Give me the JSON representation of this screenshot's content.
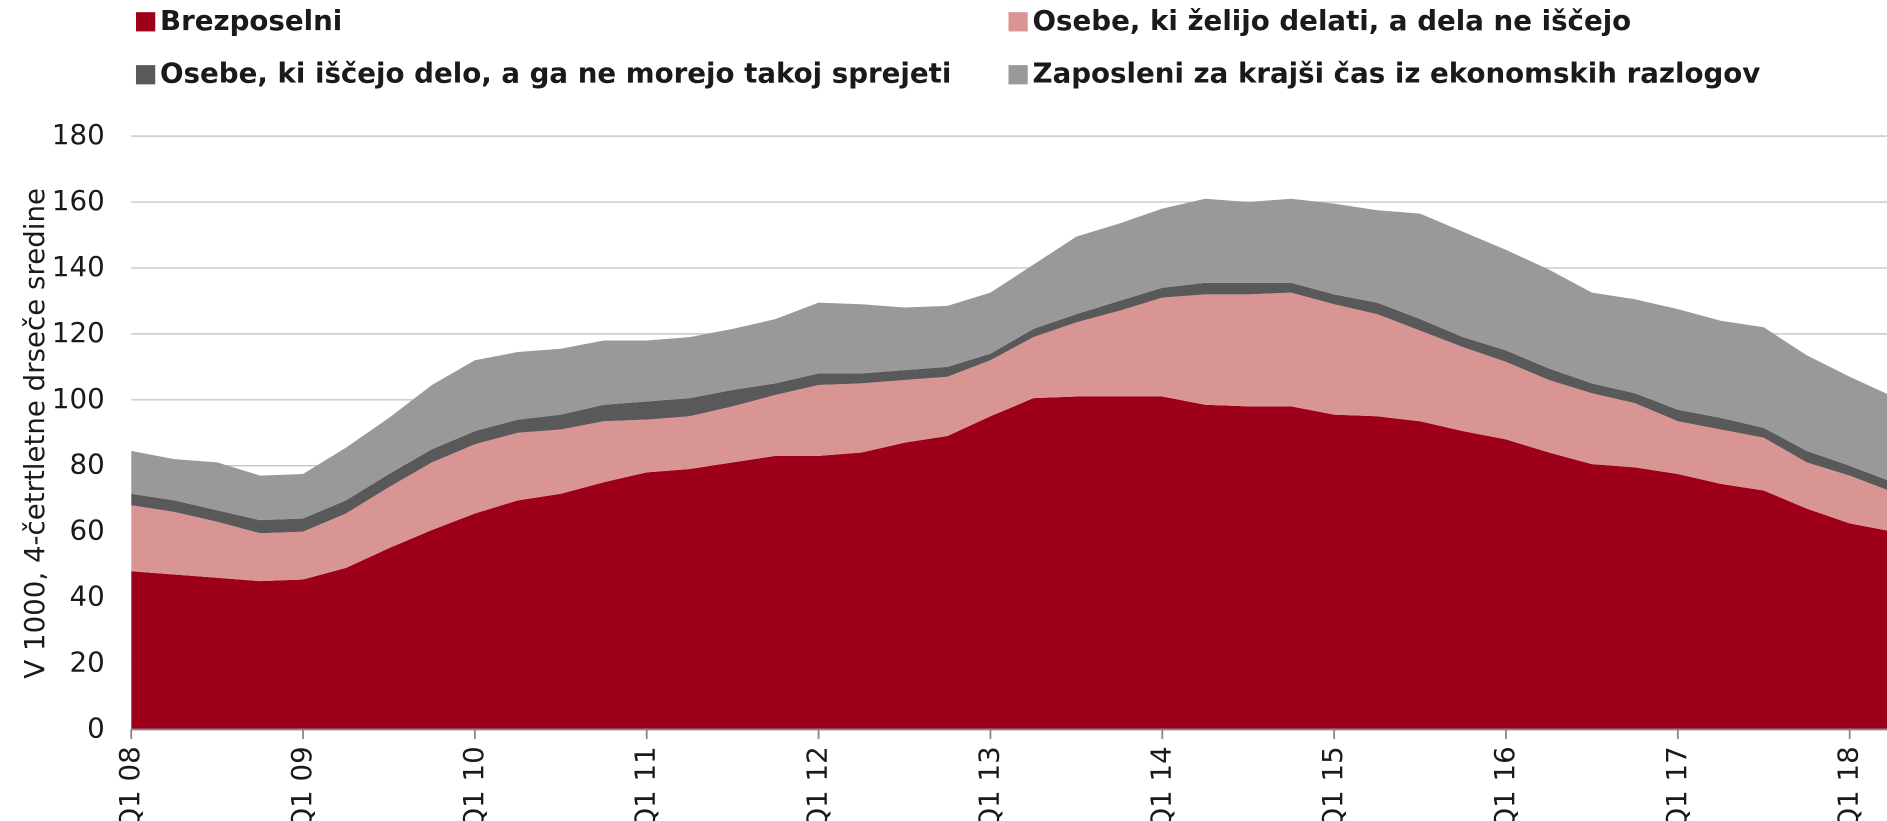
{
  "chart_data": {
    "type": "stacked_area",
    "y_label": "V 1000, 4-četrtletne drseče sredine",
    "categories": [
      "Q1 08",
      null,
      null,
      null,
      "Q1 09",
      null,
      null,
      null,
      "Q1 10",
      null,
      null,
      null,
      "Q1 11",
      null,
      null,
      null,
      "Q1 12",
      null,
      null,
      null,
      "Q1 13",
      null,
      null,
      null,
      "Q1 14",
      null,
      null,
      null,
      "Q1 15",
      null,
      null,
      null,
      "Q1 16",
      null,
      null,
      null,
      "Q1 17",
      null,
      null,
      null,
      "Q1 18",
      null
    ],
    "series": [
      {
        "name": "Brezposelni",
        "color": "#9e001a",
        "values": [
          48,
          47,
          46,
          45,
          45.5,
          49,
          55,
          60.5,
          65.5,
          69.5,
          71.5,
          75,
          78,
          79,
          81,
          83,
          83,
          84,
          87,
          89,
          95,
          100.5,
          101,
          101,
          101,
          98.5,
          98,
          98,
          95.5,
          95,
          93.5,
          90.5,
          88,
          84,
          80.5,
          79.5,
          77.5,
          74.5,
          72.5,
          67,
          62.5,
          60
        ]
      },
      {
        "name": "Osebe, ki želijo delati, a dela ne iščejo",
        "color": "#d99594",
        "values": [
          20,
          19,
          17,
          14.5,
          14.5,
          16.5,
          18.5,
          20.5,
          21,
          20.5,
          19.5,
          18.5,
          16,
          16,
          17,
          18.5,
          21.5,
          21,
          19,
          18,
          17,
          18.5,
          22.5,
          26,
          30,
          33.5,
          34,
          34.5,
          33.5,
          31,
          27.5,
          25.5,
          23.5,
          22,
          21.5,
          19.5,
          16,
          16.5,
          16,
          14,
          14.5,
          12
        ]
      },
      {
        "name": "Osebe, ki iščejo delo, a ga ne morejo takoj sprejeti",
        "color": "#595959",
        "values": [
          3.5,
          3.5,
          3.5,
          4,
          4,
          4,
          4,
          4,
          4,
          4,
          4.5,
          5,
          5.5,
          5.5,
          5,
          3.5,
          3.5,
          3,
          3,
          3,
          2,
          2.5,
          2.5,
          3,
          3,
          3.5,
          3.5,
          3,
          3,
          3.5,
          3.5,
          3,
          3.5,
          3.5,
          3,
          3,
          3.5,
          3.5,
          3,
          3.5,
          3,
          3
        ]
      },
      {
        "name": "Zaposleni za krajši čas iz ekonomskih razlogov",
        "color": "#999999",
        "values": [
          13,
          12.5,
          14.5,
          13.5,
          13.5,
          16,
          17,
          19.5,
          21.5,
          20.5,
          20,
          19.5,
          18.5,
          18.5,
          18.5,
          19.5,
          21.5,
          21,
          19,
          18.5,
          18.5,
          19.5,
          23.5,
          23.5,
          24,
          25.5,
          24.5,
          25.5,
          27.5,
          28,
          32,
          32,
          30.5,
          30,
          27.5,
          28.5,
          30.5,
          29.5,
          30.5,
          29,
          27,
          26
        ]
      }
    ],
    "ylim": [
      0,
      180
    ],
    "yticks": [
      0,
      20,
      40,
      60,
      80,
      100,
      120,
      140,
      160,
      180
    ],
    "grid": true
  }
}
